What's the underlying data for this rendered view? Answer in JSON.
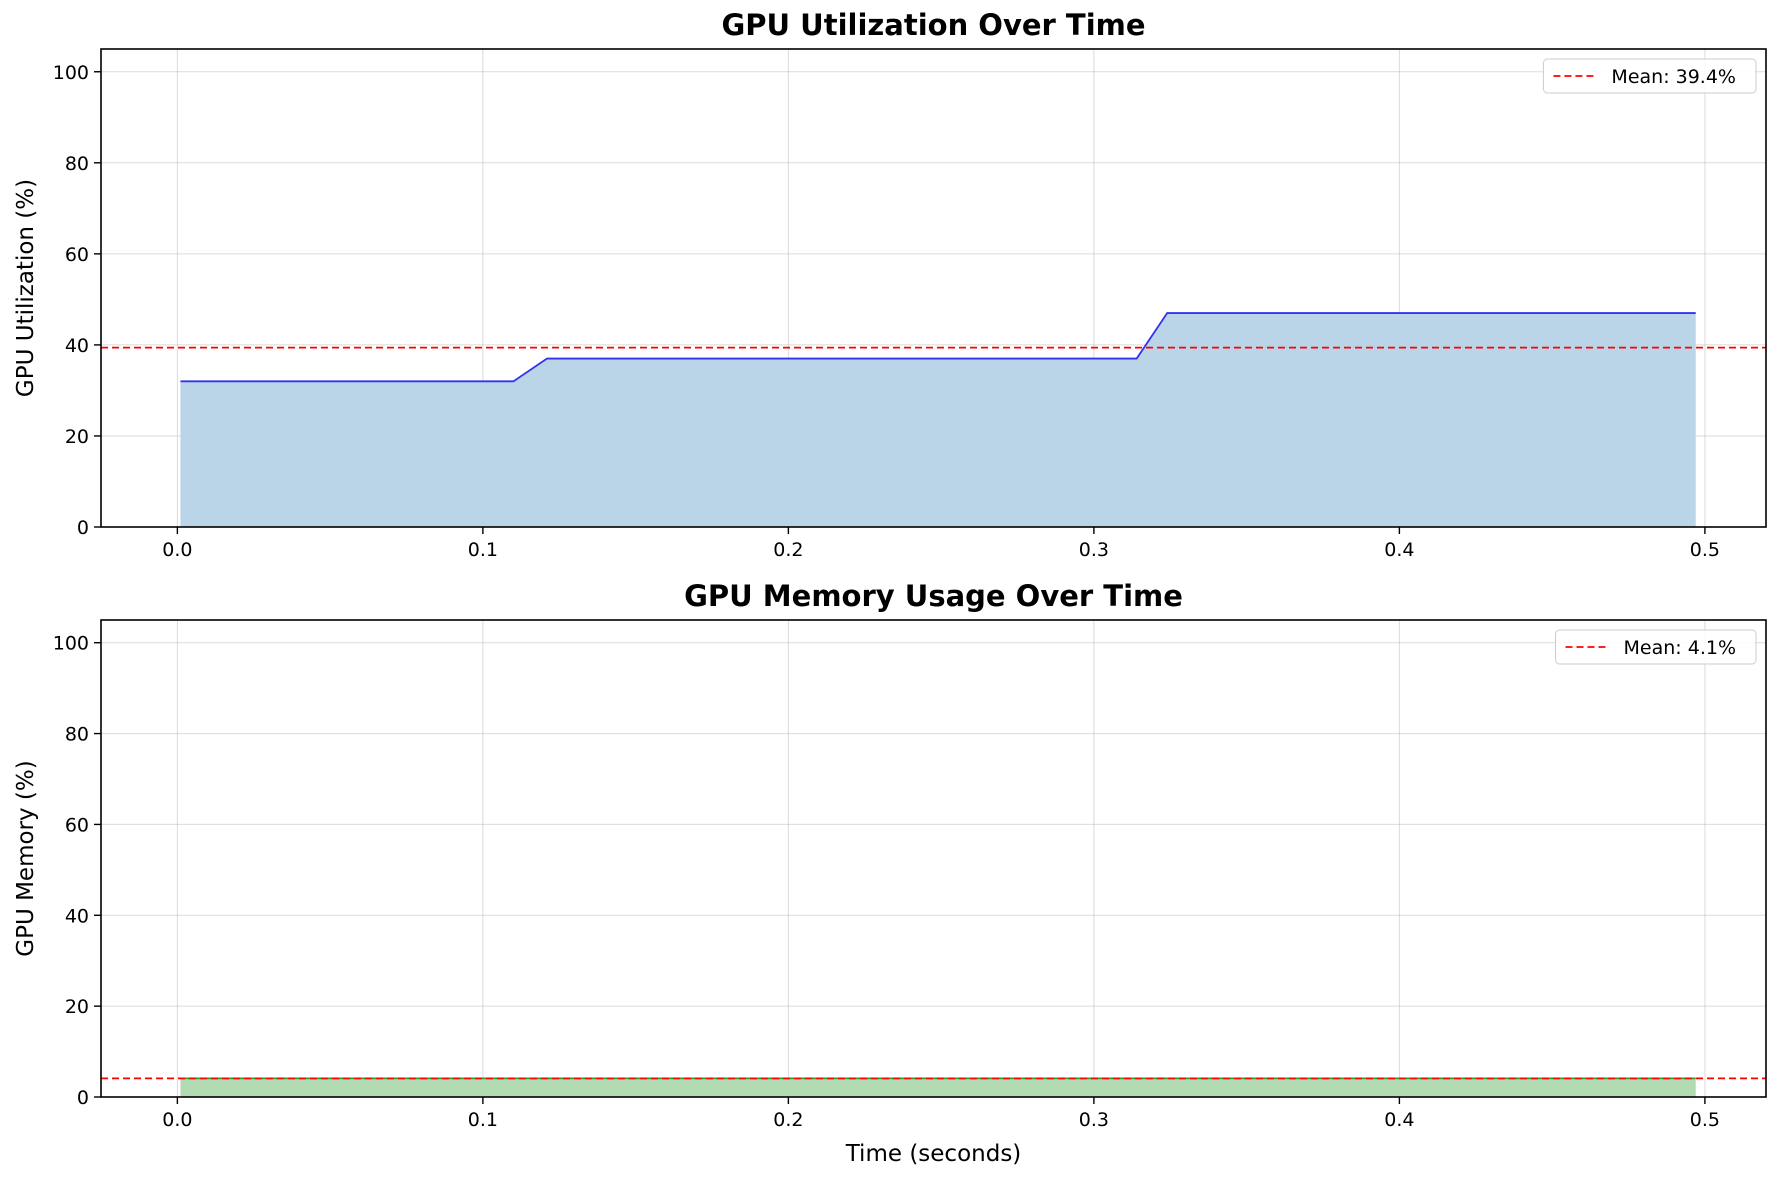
{
  "chart_data": [
    {
      "type": "area",
      "title": "GPU Utilization Over Time",
      "xlabel": "",
      "ylabel": "GPU Utilization (%)",
      "xlim": [
        -0.025,
        0.52
      ],
      "ylim": [
        0,
        105
      ],
      "xticks": [
        "0.0",
        "0.1",
        "0.2",
        "0.3",
        "0.4",
        "0.5"
      ],
      "xtick_values": [
        0.0,
        0.1,
        0.2,
        0.3,
        0.4,
        0.5
      ],
      "yticks": [
        "0",
        "20",
        "40",
        "60",
        "80",
        "100"
      ],
      "ytick_values": [
        0,
        20,
        40,
        60,
        80,
        100
      ],
      "grid": true,
      "legend_position": "top-right",
      "line_color": "#3333ee",
      "fill_color": "#bbd5e8",
      "x": [
        0.001,
        0.11,
        0.121,
        0.314,
        0.324,
        0.497
      ],
      "y": [
        32,
        32,
        37,
        37,
        47,
        47
      ],
      "mean": {
        "value": 39.4,
        "label": "Mean: 39.4%",
        "color": "#ff0000",
        "style": "dashed"
      }
    },
    {
      "type": "area",
      "title": "GPU Memory Usage Over Time",
      "xlabel": "Time (seconds)",
      "ylabel": "GPU Memory (%)",
      "xlim": [
        -0.025,
        0.52
      ],
      "ylim": [
        0,
        105
      ],
      "xticks": [
        "0.0",
        "0.1",
        "0.2",
        "0.3",
        "0.4",
        "0.5"
      ],
      "xtick_values": [
        0.0,
        0.1,
        0.2,
        0.3,
        0.4,
        0.5
      ],
      "yticks": [
        "0",
        "20",
        "40",
        "60",
        "80",
        "100"
      ],
      "ytick_values": [
        0,
        20,
        40,
        60,
        80,
        100
      ],
      "grid": true,
      "legend_position": "top-right",
      "line_color": "#2ca02c",
      "fill_color": "#b3dbb3",
      "x": [
        0.001,
        0.497
      ],
      "y": [
        4.1,
        4.1
      ],
      "mean": {
        "value": 4.1,
        "label": "Mean: 4.1%",
        "color": "#ff0000",
        "style": "dashed"
      }
    }
  ]
}
